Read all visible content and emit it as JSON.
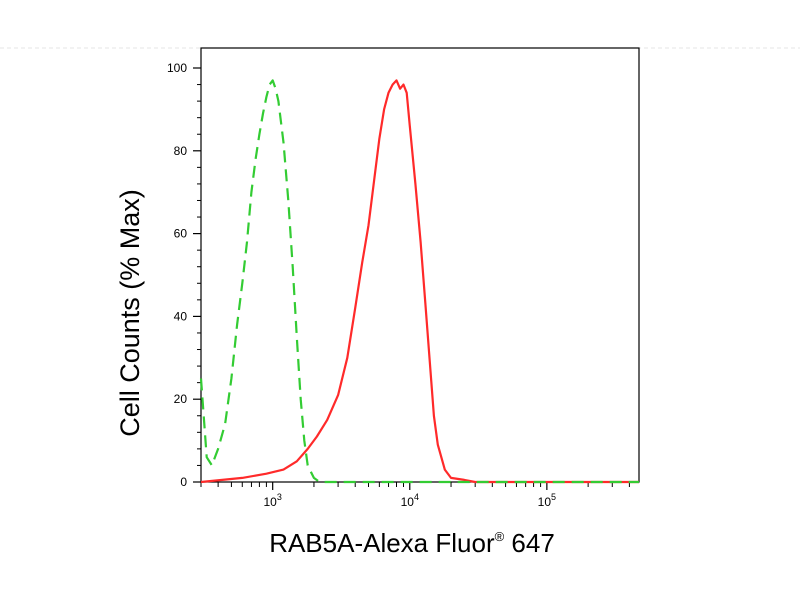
{
  "chart_data": {
    "type": "line",
    "xscale": "log",
    "xlim": [
      300,
      470000
    ],
    "ylim": [
      0,
      100
    ],
    "ylabel": "Cell Counts (% Max)",
    "xlabel": {
      "main": "RAB5A-Alexa Fluor",
      "sup": "®",
      "suffix": " 647"
    },
    "yticks": [
      "0",
      "20",
      "40",
      "60",
      "80",
      "100"
    ],
    "ytick_values": [
      0,
      20,
      40,
      60,
      80,
      100
    ],
    "xticks": [
      {
        "base": "10",
        "exp": "3",
        "value": 1000
      },
      {
        "base": "10",
        "exp": "4",
        "value": 10000
      },
      {
        "base": "10",
        "exp": "5",
        "value": 100000
      }
    ],
    "grid": false,
    "series": [
      {
        "color": "#ff2a2a",
        "style": "solid",
        "x": [
          300,
          600,
          900,
          1200,
          1500,
          1800,
          2100,
          2500,
          3000,
          3500,
          4000,
          4500,
          5000,
          5500,
          6000,
          6500,
          7000,
          7500,
          8000,
          8500,
          9000,
          9500,
          10000,
          11000,
          12000,
          13000,
          14000,
          15000,
          16000,
          18000,
          20000,
          25000,
          30000,
          50000,
          100000,
          470000
        ],
        "y": [
          0,
          1,
          2,
          3,
          5,
          8,
          11,
          15,
          21,
          30,
          42,
          53,
          62,
          73,
          83,
          90,
          94,
          96,
          97,
          95,
          96,
          94,
          86,
          72,
          58,
          43,
          29,
          16,
          9,
          3,
          1,
          0.5,
          0,
          0,
          0,
          0
        ]
      },
      {
        "color": "#33cc33",
        "style": "dashed",
        "x": [
          300,
          330,
          360,
          400,
          450,
          500,
          550,
          600,
          650,
          700,
          750,
          800,
          850,
          900,
          950,
          1000,
          1050,
          1100,
          1200,
          1300,
          1400,
          1500,
          1600,
          1700,
          1800,
          2000,
          2200,
          2500,
          3000,
          5000,
          10000,
          50000,
          470000
        ],
        "y": [
          25,
          6,
          4,
          8,
          14,
          25,
          38,
          48,
          58,
          70,
          78,
          84,
          89,
          93,
          96,
          97,
          95,
          92,
          82,
          68,
          52,
          35,
          20,
          10,
          4,
          1,
          0,
          0,
          0,
          0,
          0,
          0,
          0
        ]
      }
    ]
  }
}
